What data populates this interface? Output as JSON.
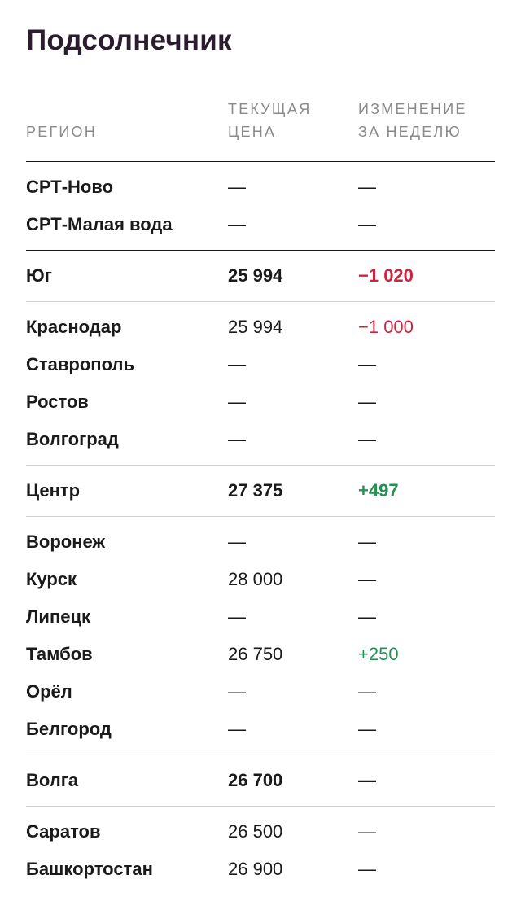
{
  "title": "Подсолнечник",
  "columns": {
    "region": "РЕГИОН",
    "price_line1": "ТЕКУЩАЯ",
    "price_line2": "ЦЕНА",
    "change_line1": "ИЗМЕНЕНИЕ",
    "change_line2": "ЗА НЕДЕЛЮ"
  },
  "colors": {
    "negative": "#d0223f",
    "positive": "#239151"
  },
  "groups": [
    {
      "rows": [
        {
          "name": "СРТ-Ново",
          "price": "—",
          "change": "—",
          "sign": ""
        },
        {
          "name": "СРТ-Малая вода",
          "price": "—",
          "change": "—",
          "sign": ""
        }
      ]
    },
    {
      "summary": {
        "name": "Юг",
        "price": "25 994",
        "change": "−1 020",
        "sign": "neg"
      }
    },
    {
      "rows": [
        {
          "name": "Краснодар",
          "price": "25 994",
          "change": "−1 000",
          "sign": "neg"
        },
        {
          "name": "Ставрополь",
          "price": "—",
          "change": "—",
          "sign": ""
        },
        {
          "name": "Ростов",
          "price": "—",
          "change": "—",
          "sign": ""
        },
        {
          "name": "Волгоград",
          "price": "—",
          "change": "—",
          "sign": ""
        }
      ]
    },
    {
      "summary": {
        "name": "Центр",
        "price": "27 375",
        "change": "+497",
        "sign": "pos"
      }
    },
    {
      "rows": [
        {
          "name": "Воронеж",
          "price": "—",
          "change": "—",
          "sign": ""
        },
        {
          "name": "Курск",
          "price": "28 000",
          "change": "—",
          "sign": ""
        },
        {
          "name": "Липецк",
          "price": "—",
          "change": "—",
          "sign": ""
        },
        {
          "name": "Тамбов",
          "price": "26 750",
          "change": "+250",
          "sign": "pos"
        },
        {
          "name": "Орёл",
          "price": "—",
          "change": "—",
          "sign": ""
        },
        {
          "name": "Белгород",
          "price": "—",
          "change": "—",
          "sign": ""
        }
      ]
    },
    {
      "summary": {
        "name": "Волга",
        "price": "26 700",
        "change": "—",
        "sign": ""
      }
    },
    {
      "rows": [
        {
          "name": "Саратов",
          "price": "26 500",
          "change": "—",
          "sign": ""
        },
        {
          "name": "Башкортостан",
          "price": "26 900",
          "change": "—",
          "sign": ""
        }
      ]
    }
  ]
}
